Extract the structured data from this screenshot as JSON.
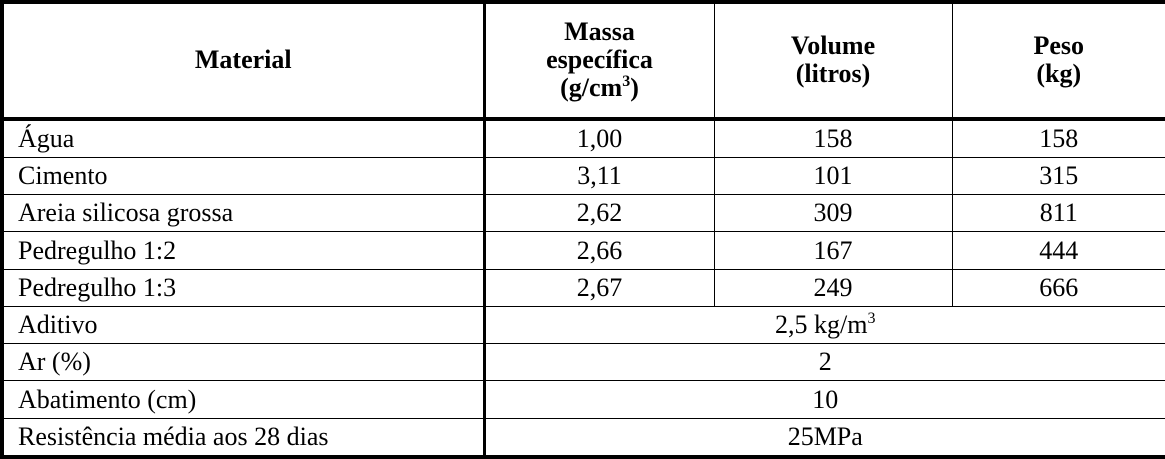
{
  "table": {
    "header": {
      "material": "Material",
      "massa": {
        "text": "Massa específica (g/cm",
        "sup": "3",
        "after": ")"
      },
      "volume": "Volume (litros)",
      "peso": "Peso (kg)"
    },
    "rows": [
      [
        "Água",
        "1,00",
        "158",
        "158"
      ],
      [
        "Cimento",
        "3,11",
        "101",
        "315"
      ],
      [
        "Areia silicosa grossa",
        "2,62",
        "309",
        "811"
      ],
      [
        "Pedregulho 1:2",
        "2,66",
        "167",
        "444"
      ],
      [
        "Pedregulho 1:3",
        "2,67",
        "249",
        "666"
      ]
    ],
    "extra_rows": [
      [
        "Aditivo",
        {
          "text": "2,5 kg/m",
          "sup": "3"
        }
      ],
      [
        "Ar (%)",
        "2"
      ],
      [
        "Abatimento (cm)",
        "10"
      ],
      [
        "Resistência média aos 28 dias",
        "25MPa"
      ]
    ]
  }
}
